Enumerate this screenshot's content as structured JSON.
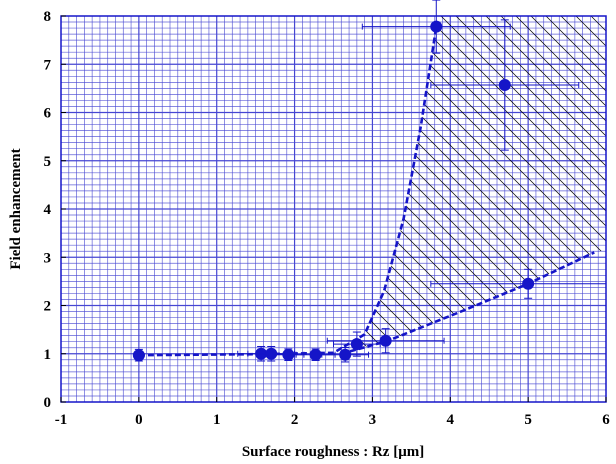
{
  "chart_data": {
    "type": "scatter",
    "xlabel": "Surface roughness : Rz [μm]",
    "ylabel": "Field enhancement",
    "xlim": [
      -1,
      6
    ],
    "ylim": [
      0,
      8
    ],
    "x_ticks": [
      "-1",
      "0",
      "1",
      "2",
      "3",
      "4",
      "5",
      "6"
    ],
    "y_ticks": [
      "0",
      "1",
      "2",
      "3",
      "4",
      "5",
      "6",
      "7",
      "8"
    ],
    "grid": true,
    "colors": {
      "primary": "#1515c8",
      "grid": "#4646d2",
      "hatch": "#000000"
    },
    "points": [
      {
        "x": 0.0,
        "y": 0.97,
        "xerr": 0.05,
        "yerr": 0.12
      },
      {
        "x": 1.57,
        "y": 1.0,
        "xerr": 0.3,
        "yerr": 0.15
      },
      {
        "x": 1.7,
        "y": 1.0,
        "xerr": 0.3,
        "yerr": 0.15
      },
      {
        "x": 1.92,
        "y": 0.98,
        "xerr": 0.2,
        "yerr": 0.12
      },
      {
        "x": 2.27,
        "y": 0.98,
        "xerr": 0.25,
        "yerr": 0.12
      },
      {
        "x": 2.65,
        "y": 0.98,
        "xerr": 0.3,
        "yerr": 0.15
      },
      {
        "x": 2.8,
        "y": 1.2,
        "xerr": 0.3,
        "yerr": 0.25
      },
      {
        "x": 3.17,
        "y": 1.27,
        "xerr": 0.75,
        "yerr": 0.25
      },
      {
        "x": 3.82,
        "y": 7.78,
        "xerr": 0.95,
        "yerr": 0.55
      },
      {
        "x": 4.7,
        "y": 6.57,
        "xerr": 0.95,
        "yerr": 1.35
      },
      {
        "x": 5.0,
        "y": 2.45,
        "xerr": 1.25,
        "yerr": 0.3
      }
    ],
    "upper_curve": [
      {
        "x": 0.0,
        "y": 0.97
      },
      {
        "x": 1.5,
        "y": 0.99
      },
      {
        "x": 2.5,
        "y": 1.02
      },
      {
        "x": 2.9,
        "y": 1.4
      },
      {
        "x": 3.15,
        "y": 2.3
      },
      {
        "x": 3.4,
        "y": 3.8
      },
      {
        "x": 3.62,
        "y": 5.7
      },
      {
        "x": 3.82,
        "y": 7.78
      }
    ],
    "lower_curve": [
      {
        "x": 2.6,
        "y": 1.0
      },
      {
        "x": 3.2,
        "y": 1.27
      },
      {
        "x": 4.1,
        "y": 1.85
      },
      {
        "x": 5.0,
        "y": 2.45
      },
      {
        "x": 5.85,
        "y": 3.1
      }
    ],
    "hatched_region": [
      {
        "x": 2.7,
        "y": 1.05
      },
      {
        "x": 2.9,
        "y": 1.4
      },
      {
        "x": 3.15,
        "y": 2.3
      },
      {
        "x": 3.4,
        "y": 3.8
      },
      {
        "x": 3.62,
        "y": 5.7
      },
      {
        "x": 3.82,
        "y": 7.78
      },
      {
        "x": 3.87,
        "y": 8.0
      },
      {
        "x": 6.0,
        "y": 8.0
      },
      {
        "x": 6.0,
        "y": 3.15
      },
      {
        "x": 5.85,
        "y": 3.1
      },
      {
        "x": 5.0,
        "y": 2.45
      },
      {
        "x": 4.1,
        "y": 1.85
      },
      {
        "x": 3.2,
        "y": 1.27
      }
    ]
  }
}
